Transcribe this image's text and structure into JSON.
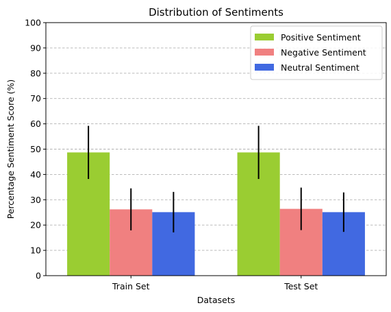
{
  "chart_data": {
    "type": "bar",
    "title": "Distribution of Sentiments",
    "xlabel": "Datasets",
    "ylabel": "Percentage Sentiment Score (%)",
    "categories": [
      "Train Set",
      "Test Set"
    ],
    "ylim": [
      0,
      100
    ],
    "yticks": [
      0,
      10,
      20,
      30,
      40,
      50,
      60,
      70,
      80,
      90,
      100
    ],
    "grid": "y-dashed",
    "legend_position": "top-right",
    "series": [
      {
        "name": "Positive Sentiment",
        "color": "#9acd32",
        "values": [
          48.7,
          48.7
        ],
        "errors": [
          10.5,
          10.5
        ]
      },
      {
        "name": "Negative Sentiment",
        "color": "#f08080",
        "values": [
          26.2,
          26.4
        ],
        "errors": [
          8.3,
          8.4
        ]
      },
      {
        "name": "Neutral Sentiment",
        "color": "#4169e1",
        "values": [
          25.1,
          25.1
        ],
        "errors": [
          8.0,
          7.8
        ]
      }
    ]
  }
}
